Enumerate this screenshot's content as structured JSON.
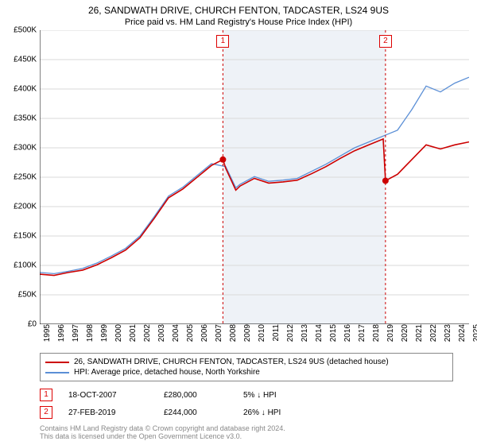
{
  "title_main": "26, SANDWATH DRIVE, CHURCH FENTON, TADCASTER, LS24 9US",
  "title_sub": "Price paid vs. HM Land Registry's House Price Index (HPI)",
  "chart": {
    "type": "line",
    "background_color": "#ffffff",
    "shaded_band_color": "#eef2f7",
    "grid_color": "#d9d9d9",
    "axis_color": "#000000",
    "xlim": [
      1995,
      2025
    ],
    "ylim": [
      0,
      500000
    ],
    "ytick_step": 50000,
    "ytick_prefix": "£",
    "ytick_labels": [
      "£0",
      "£50K",
      "£100K",
      "£150K",
      "£200K",
      "£250K",
      "£300K",
      "£350K",
      "£400K",
      "£450K",
      "£500K"
    ],
    "xtick_step": 1,
    "xtick_labels": [
      "1995",
      "1996",
      "1997",
      "1998",
      "1999",
      "2000",
      "2001",
      "2002",
      "2003",
      "2004",
      "2005",
      "2006",
      "2007",
      "2008",
      "2009",
      "2010",
      "2011",
      "2012",
      "2013",
      "2014",
      "2015",
      "2016",
      "2017",
      "2018",
      "2019",
      "2020",
      "2021",
      "2022",
      "2023",
      "2024",
      "2025"
    ],
    "shaded_band": {
      "x_start": 2007.8,
      "x_end": 2019.16
    },
    "markers": [
      {
        "label": "1",
        "x": 2007.8,
        "y": 280000,
        "dot_color": "#cc0000",
        "line_color": "#cc0000"
      },
      {
        "label": "2",
        "x": 2019.16,
        "y": 244000,
        "dot_color": "#cc0000",
        "line_color": "#cc0000"
      }
    ],
    "series": [
      {
        "name": "property",
        "color": "#cc0000",
        "width": 1.6,
        "data": [
          [
            1995,
            85000
          ],
          [
            1996,
            83000
          ],
          [
            1997,
            88000
          ],
          [
            1998,
            92000
          ],
          [
            1999,
            101000
          ],
          [
            2000,
            113000
          ],
          [
            2001,
            126000
          ],
          [
            2002,
            147000
          ],
          [
            2003,
            180000
          ],
          [
            2004,
            215000
          ],
          [
            2005,
            230000
          ],
          [
            2006,
            250000
          ],
          [
            2007,
            270000
          ],
          [
            2007.8,
            280000
          ],
          [
            2008,
            265000
          ],
          [
            2008.7,
            228000
          ],
          [
            2009,
            235000
          ],
          [
            2010,
            248000
          ],
          [
            2011,
            240000
          ],
          [
            2012,
            242000
          ],
          [
            2013,
            245000
          ],
          [
            2014,
            256000
          ],
          [
            2015,
            268000
          ],
          [
            2016,
            282000
          ],
          [
            2017,
            295000
          ],
          [
            2018,
            305000
          ],
          [
            2019,
            315000
          ],
          [
            2019.16,
            244000
          ],
          [
            2020,
            255000
          ],
          [
            2021,
            280000
          ],
          [
            2022,
            305000
          ],
          [
            2023,
            298000
          ],
          [
            2024,
            305000
          ],
          [
            2025,
            310000
          ]
        ]
      },
      {
        "name": "hpi",
        "color": "#5b8fd6",
        "width": 1.3,
        "data": [
          [
            1995,
            88000
          ],
          [
            1996,
            86000
          ],
          [
            1997,
            90000
          ],
          [
            1998,
            95000
          ],
          [
            1999,
            104000
          ],
          [
            2000,
            116000
          ],
          [
            2001,
            129000
          ],
          [
            2002,
            150000
          ],
          [
            2003,
            183000
          ],
          [
            2004,
            218000
          ],
          [
            2005,
            233000
          ],
          [
            2006,
            253000
          ],
          [
            2007,
            273000
          ],
          [
            2008,
            268000
          ],
          [
            2008.7,
            232000
          ],
          [
            2009,
            238000
          ],
          [
            2010,
            251000
          ],
          [
            2011,
            243000
          ],
          [
            2012,
            245000
          ],
          [
            2013,
            248000
          ],
          [
            2014,
            260000
          ],
          [
            2015,
            272000
          ],
          [
            2016,
            286000
          ],
          [
            2017,
            300000
          ],
          [
            2018,
            310000
          ],
          [
            2019,
            320000
          ],
          [
            2020,
            330000
          ],
          [
            2021,
            365000
          ],
          [
            2022,
            405000
          ],
          [
            2023,
            395000
          ],
          [
            2024,
            410000
          ],
          [
            2025,
            420000
          ]
        ]
      }
    ]
  },
  "legend": {
    "items": [
      {
        "color": "#cc0000",
        "label": "26, SANDWATH DRIVE, CHURCH FENTON, TADCASTER, LS24 9US (detached house)"
      },
      {
        "color": "#5b8fd6",
        "label": "HPI: Average price, detached house, North Yorkshire"
      }
    ]
  },
  "entries": [
    {
      "marker": "1",
      "date": "18-OCT-2007",
      "price": "£280,000",
      "diff": "5% ↓ HPI"
    },
    {
      "marker": "2",
      "date": "27-FEB-2019",
      "price": "£244,000",
      "diff": "26% ↓ HPI"
    }
  ],
  "footer_line1": "Contains HM Land Registry data © Crown copyright and database right 2024.",
  "footer_line2": "This data is licensed under the Open Government Licence v3.0."
}
